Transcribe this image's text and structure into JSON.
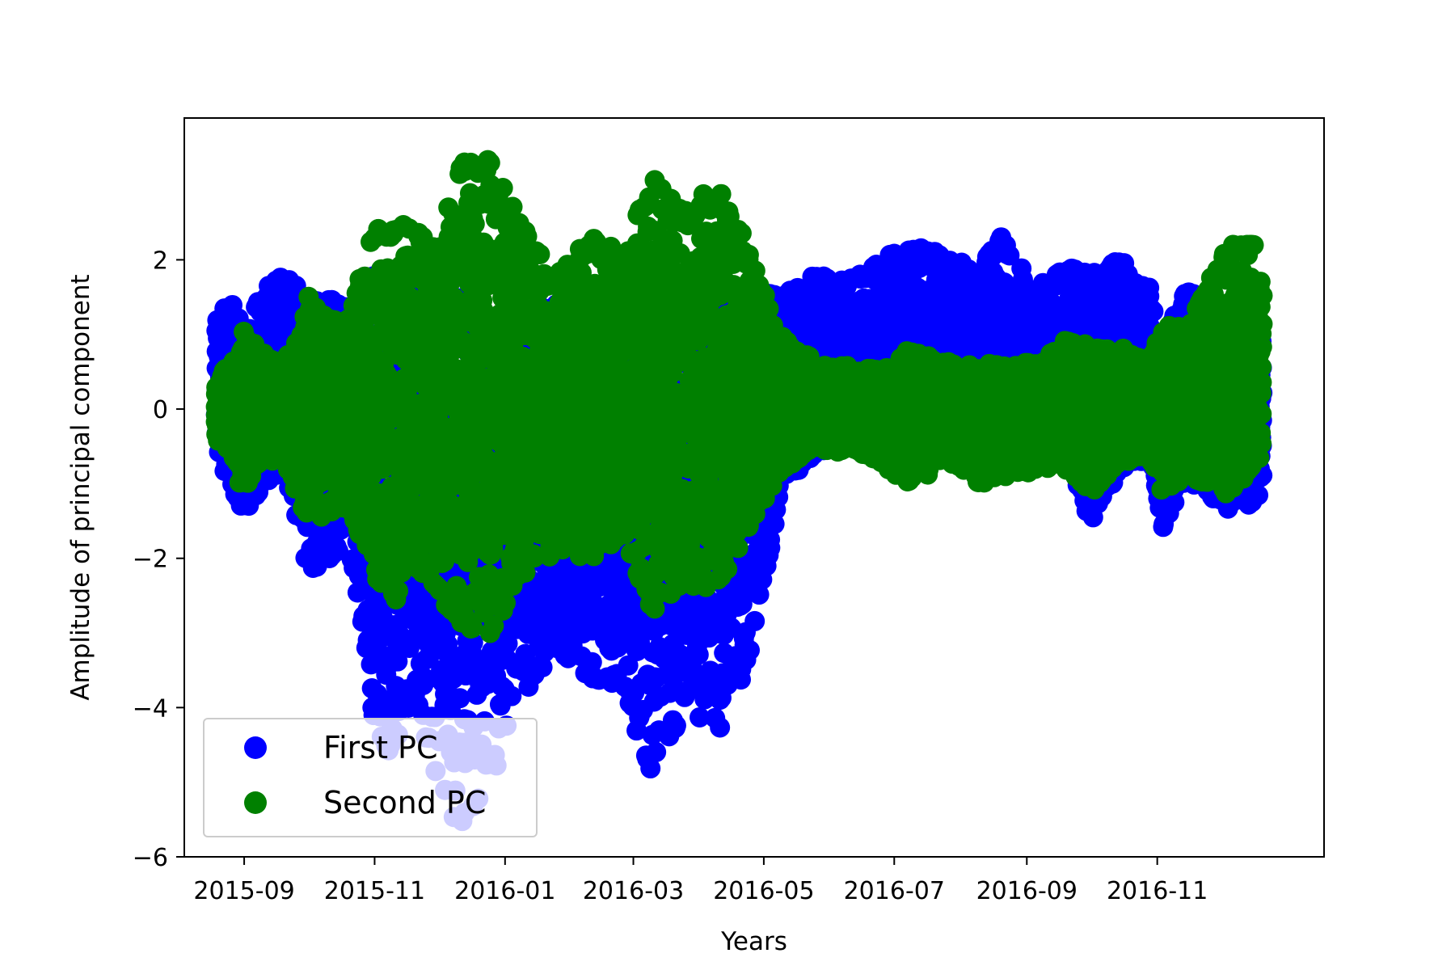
{
  "chart_data": {
    "type": "scatter",
    "title": "",
    "xlabel": "Years",
    "ylabel": "Amplitude of principal component",
    "xlim": [
      "2015-08-04",
      "2017-01-18"
    ],
    "ylim": [
      -6.0,
      3.9
    ],
    "x_ticks": [
      "2015-09",
      "2015-11",
      "2016-01",
      "2016-03",
      "2016-05",
      "2016-07",
      "2016-09",
      "2016-11"
    ],
    "y_ticks": [
      {
        "value": 2,
        "label": "2"
      },
      {
        "value": 0,
        "label": "0"
      },
      {
        "value": -2,
        "label": "−2"
      },
      {
        "value": -4,
        "label": "−4"
      },
      {
        "value": -6,
        "label": "−6"
      }
    ],
    "grid": false,
    "legend": {
      "position": "lower-left"
    },
    "x_range": [
      "2015-08-19",
      "2016-12-20"
    ],
    "series": [
      {
        "name": "First PC",
        "color": "#0000ff",
        "envelope": [
          {
            "x": "2015-08-19",
            "low": -0.6,
            "high": 1.3
          },
          {
            "x": "2015-08-25",
            "low": -0.9,
            "high": 1.5
          },
          {
            "x": "2015-09-01",
            "low": -1.4,
            "high": 1.0
          },
          {
            "x": "2015-09-10",
            "low": -1.0,
            "high": 1.6
          },
          {
            "x": "2015-09-20",
            "low": -0.8,
            "high": 1.8
          },
          {
            "x": "2015-10-01",
            "low": -2.2,
            "high": 1.4
          },
          {
            "x": "2015-10-10",
            "low": -2.0,
            "high": 1.5
          },
          {
            "x": "2015-10-20",
            "low": -1.8,
            "high": 1.3
          },
          {
            "x": "2015-11-01",
            "low": -4.2,
            "high": 1.8
          },
          {
            "x": "2015-11-08",
            "low": -4.6,
            "high": 1.5
          },
          {
            "x": "2015-11-20",
            "low": -3.9,
            "high": 1.6
          },
          {
            "x": "2015-12-01",
            "low": -5.0,
            "high": 1.4
          },
          {
            "x": "2015-12-10",
            "low": -5.6,
            "high": 1.5
          },
          {
            "x": "2015-12-25",
            "low": -5.0,
            "high": 1.2
          },
          {
            "x": "2016-01-10",
            "low": -3.8,
            "high": 1.3
          },
          {
            "x": "2016-01-25",
            "low": -3.2,
            "high": 1.4
          },
          {
            "x": "2016-02-10",
            "low": -3.6,
            "high": 1.2
          },
          {
            "x": "2016-02-25",
            "low": -3.7,
            "high": 1.3
          },
          {
            "x": "2016-03-10",
            "low": -4.9,
            "high": 1.5
          },
          {
            "x": "2016-03-25",
            "low": -4.0,
            "high": 1.2
          },
          {
            "x": "2016-04-10",
            "low": -4.3,
            "high": 1.4
          },
          {
            "x": "2016-04-25",
            "low": -3.3,
            "high": 1.6
          },
          {
            "x": "2016-05-10",
            "low": -0.9,
            "high": 1.5
          },
          {
            "x": "2016-05-25",
            "low": -0.6,
            "high": 1.8
          },
          {
            "x": "2016-06-10",
            "low": -0.4,
            "high": 1.7
          },
          {
            "x": "2016-06-25",
            "low": -0.3,
            "high": 2.0
          },
          {
            "x": "2016-07-10",
            "low": -0.5,
            "high": 2.2
          },
          {
            "x": "2016-07-25",
            "low": -0.4,
            "high": 2.0
          },
          {
            "x": "2016-08-10",
            "low": -0.5,
            "high": 1.9
          },
          {
            "x": "2016-08-20",
            "low": -0.6,
            "high": 2.3
          },
          {
            "x": "2016-09-05",
            "low": -0.5,
            "high": 1.6
          },
          {
            "x": "2016-09-20",
            "low": -0.5,
            "high": 1.9
          },
          {
            "x": "2016-10-01",
            "low": -1.5,
            "high": 1.8
          },
          {
            "x": "2016-10-15",
            "low": -0.8,
            "high": 2.0
          },
          {
            "x": "2016-10-28",
            "low": -0.6,
            "high": 1.6
          },
          {
            "x": "2016-11-03",
            "low": -1.6,
            "high": 0.9
          },
          {
            "x": "2016-11-15",
            "low": -0.9,
            "high": 1.6
          },
          {
            "x": "2016-12-05",
            "low": -1.3,
            "high": 1.2
          },
          {
            "x": "2016-12-20",
            "low": -1.2,
            "high": 0.9
          }
        ]
      },
      {
        "name": "Second PC",
        "color": "#008000",
        "envelope": [
          {
            "x": "2015-08-19",
            "low": -0.4,
            "high": 0.4
          },
          {
            "x": "2015-08-25",
            "low": -0.5,
            "high": 0.5
          },
          {
            "x": "2015-09-01",
            "low": -1.2,
            "high": 1.0
          },
          {
            "x": "2015-09-10",
            "low": -0.6,
            "high": 0.7
          },
          {
            "x": "2015-09-20",
            "low": -0.7,
            "high": 0.6
          },
          {
            "x": "2015-10-01",
            "low": -1.5,
            "high": 1.5
          },
          {
            "x": "2015-10-10",
            "low": -1.4,
            "high": 1.3
          },
          {
            "x": "2015-10-20",
            "low": -1.3,
            "high": 1.2
          },
          {
            "x": "2015-11-01",
            "low": -2.2,
            "high": 2.5
          },
          {
            "x": "2015-11-08",
            "low": -2.7,
            "high": 2.4
          },
          {
            "x": "2015-11-20",
            "low": -2.1,
            "high": 2.4
          },
          {
            "x": "2015-12-01",
            "low": -2.4,
            "high": 2.1
          },
          {
            "x": "2015-12-10",
            "low": -2.9,
            "high": 3.3
          },
          {
            "x": "2015-12-25",
            "low": -3.0,
            "high": 3.3
          },
          {
            "x": "2016-01-10",
            "low": -2.2,
            "high": 2.4
          },
          {
            "x": "2016-01-25",
            "low": -1.9,
            "high": 1.8
          },
          {
            "x": "2016-02-10",
            "low": -2.0,
            "high": 2.3
          },
          {
            "x": "2016-02-25",
            "low": -1.7,
            "high": 2.1
          },
          {
            "x": "2016-03-10",
            "low": -2.7,
            "high": 3.1
          },
          {
            "x": "2016-03-25",
            "low": -2.3,
            "high": 2.6
          },
          {
            "x": "2016-04-10",
            "low": -2.4,
            "high": 3.0
          },
          {
            "x": "2016-04-25",
            "low": -1.5,
            "high": 2.0
          },
          {
            "x": "2016-05-10",
            "low": -0.8,
            "high": 0.9
          },
          {
            "x": "2016-05-25",
            "low": -0.5,
            "high": 0.6
          },
          {
            "x": "2016-06-10",
            "low": -0.5,
            "high": 0.5
          },
          {
            "x": "2016-06-25",
            "low": -0.7,
            "high": 0.5
          },
          {
            "x": "2016-07-10",
            "low": -1.0,
            "high": 0.8
          },
          {
            "x": "2016-07-25",
            "low": -0.6,
            "high": 0.6
          },
          {
            "x": "2016-08-10",
            "low": -1.0,
            "high": 0.5
          },
          {
            "x": "2016-08-20",
            "low": -0.9,
            "high": 0.6
          },
          {
            "x": "2016-09-05",
            "low": -0.8,
            "high": 0.6
          },
          {
            "x": "2016-09-20",
            "low": -0.8,
            "high": 0.9
          },
          {
            "x": "2016-10-01",
            "low": -1.1,
            "high": 0.8
          },
          {
            "x": "2016-10-15",
            "low": -0.7,
            "high": 0.8
          },
          {
            "x": "2016-10-28",
            "low": -0.6,
            "high": 0.6
          },
          {
            "x": "2016-11-03",
            "low": -1.1,
            "high": 1.1
          },
          {
            "x": "2016-11-15",
            "low": -0.9,
            "high": 1.1
          },
          {
            "x": "2016-12-05",
            "low": -1.1,
            "high": 2.2
          },
          {
            "x": "2016-12-20",
            "low": -0.6,
            "high": 2.2
          }
        ]
      }
    ]
  }
}
